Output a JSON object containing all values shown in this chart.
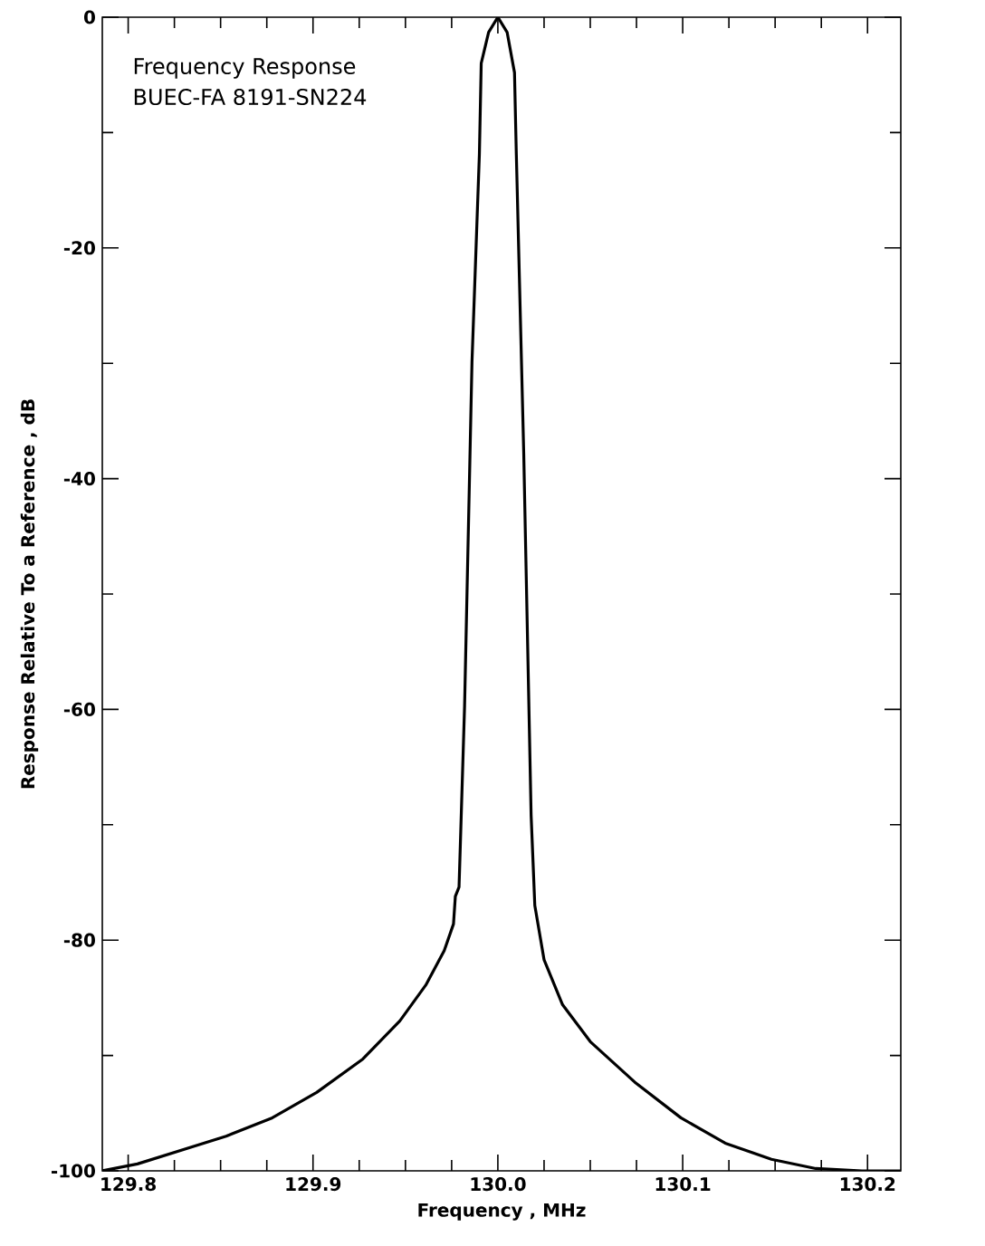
{
  "chart_data": {
    "type": "line",
    "title": "Frequency Response",
    "subtitle": "BUEC-FA 8191-SN224",
    "xlabel": "Frequency , MHz",
    "ylabel": "Response  Relative  To a  Reference , dB",
    "xlim": [
      129.786,
      130.218
    ],
    "ylim": [
      -100,
      0
    ],
    "xticks": [
      129.8,
      129.9,
      {
        "value": 130,
        "label": "130.0"
      },
      130.1,
      130.2
    ],
    "yticks": [
      0,
      -20,
      -40,
      -60,
      -80,
      -100
    ],
    "marker": "none",
    "line_style": "solid",
    "x": [
      129.786,
      129.805,
      129.853,
      129.878,
      129.902,
      129.927,
      129.947,
      129.961,
      129.971,
      129.976,
      129.977,
      129.979,
      129.982,
      129.986,
      129.99,
      129.991,
      129.995,
      130.0,
      130.005,
      130.009,
      130.01,
      130.014,
      130.018,
      130.02,
      130.025,
      130.035,
      130.05,
      130.074,
      130.099,
      130.123,
      130.148,
      130.172,
      130.197,
      130.218
    ],
    "series": [
      {
        "color": "#000000",
        "values": [
          -100,
          -99.4,
          -97,
          -95.4,
          -93.2,
          -90.3,
          -87,
          -83.9,
          -80.9,
          -78.6,
          -76.2,
          -75.4,
          -59.7,
          -29.9,
          -11.9,
          -4,
          -1.3,
          0,
          -1.3,
          -4.8,
          -11.9,
          -37.8,
          -69.2,
          -77,
          -81.7,
          -85.6,
          -88.8,
          -92.3,
          -95.4,
          -97.6,
          -99,
          -99.8,
          -100,
          -100
        ]
      }
    ]
  }
}
